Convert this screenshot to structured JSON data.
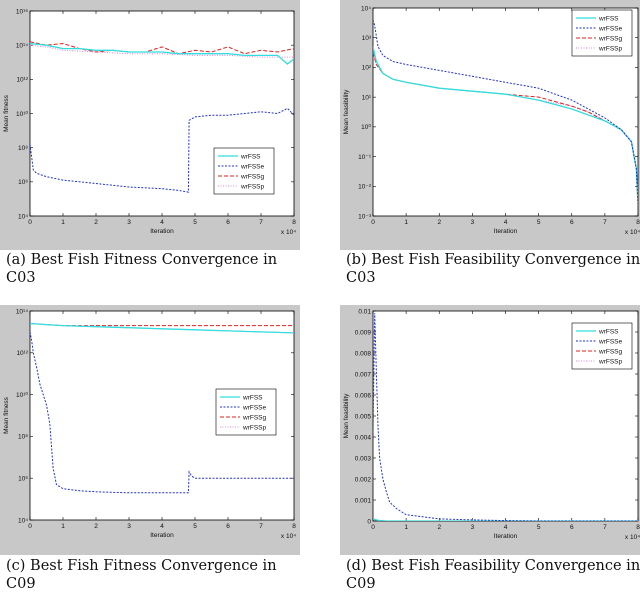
{
  "captions": [
    "(a) Best Fish Fitness Convergence in C03",
    "(b) Best Fish Feasibility Convergence in C03",
    "(c) Best Fish Fitness Convergence in C09",
    "(d) Best Fish Feasibility Convergence in C09"
  ],
  "colors": {
    "wrFSS": "#33dddd",
    "wrFSSe": "#2233cc",
    "wrFSSg": "#dd2222",
    "wrFSSp": "#dd88dd"
  },
  "chart_data": [
    {
      "type": "line",
      "title": "",
      "xlabel": "Iteration",
      "ylabel": "Mean fitness",
      "x_multiplier": "x 10⁴",
      "yscale": "log",
      "xlim": [
        0,
        8
      ],
      "ylim_exp": [
        4,
        16
      ],
      "xticks": [
        "0",
        "1",
        "2",
        "3",
        "4",
        "5",
        "6",
        "7",
        "8"
      ],
      "yticks": [
        "10⁴",
        "10⁶",
        "10⁸",
        "10¹⁰",
        "10¹²",
        "10¹⁴",
        "10¹⁶"
      ],
      "legend_position": "lower-right",
      "series": [
        {
          "name": "wrFSS",
          "x": [
            0,
            0.5,
            1,
            1.5,
            2,
            2.5,
            3,
            3.5,
            4,
            4.5,
            5,
            5.5,
            6,
            6.5,
            7,
            7.5,
            7.8,
            8
          ],
          "log10_y": [
            14.1,
            14.0,
            13.8,
            13.8,
            13.7,
            13.7,
            13.6,
            13.6,
            13.6,
            13.5,
            13.5,
            13.5,
            13.5,
            13.4,
            13.4,
            13.4,
            12.9,
            13.2
          ]
        },
        {
          "name": "wrFSSe",
          "x": [
            0,
            0.1,
            0.2,
            0.5,
            1,
            2,
            3,
            4,
            4.5,
            4.8,
            4.82,
            5,
            5.5,
            6,
            6.5,
            7,
            7.5,
            7.8,
            8
          ],
          "log10_y": [
            8.2,
            6.7,
            6.5,
            6.3,
            6.1,
            5.9,
            5.7,
            5.6,
            5.5,
            5.4,
            9.6,
            9.8,
            9.9,
            9.9,
            10.0,
            10.1,
            10.0,
            10.3,
            9.9
          ]
        },
        {
          "name": "wrFSSg",
          "x": [
            0,
            0.5,
            1,
            1.5,
            2,
            2.5,
            3,
            3.5,
            4,
            4.5,
            5,
            5.5,
            6,
            6.5,
            7,
            7.5,
            8
          ],
          "log10_y": [
            14.2,
            14.0,
            14.1,
            13.8,
            13.6,
            13.7,
            13.6,
            13.6,
            13.9,
            13.5,
            13.7,
            13.6,
            13.9,
            13.5,
            13.7,
            13.6,
            13.8
          ]
        },
        {
          "name": "wrFSSp",
          "x": [
            0,
            0.5,
            1,
            2,
            3,
            4,
            5,
            6,
            7,
            8
          ],
          "log10_y": [
            14.0,
            13.9,
            13.7,
            13.6,
            13.5,
            13.5,
            13.4,
            13.4,
            13.3,
            13.3
          ]
        }
      ]
    },
    {
      "type": "line",
      "title": "",
      "xlabel": "Iteration",
      "ylabel": "Mean feasibility",
      "x_multiplier": "x 10⁴",
      "yscale": "log",
      "xlim": [
        0,
        8
      ],
      "ylim_exp": [
        -3,
        4
      ],
      "xticks": [
        "0",
        "1",
        "2",
        "3",
        "4",
        "5",
        "6",
        "7",
        "8"
      ],
      "yticks": [
        "10⁻³",
        "10⁻²",
        "10⁻¹",
        "10⁰",
        "10¹",
        "10²",
        "10³",
        "10⁴"
      ],
      "legend_position": "top-right",
      "series": [
        {
          "name": "wrFSS",
          "x": [
            0,
            0.1,
            0.3,
            0.6,
            1,
            2,
            3,
            4,
            5,
            6,
            6.5,
            7,
            7.5,
            7.8,
            7.95,
            8
          ],
          "log10_y": [
            2.7,
            2.2,
            1.8,
            1.6,
            1.5,
            1.3,
            1.2,
            1.1,
            0.9,
            0.6,
            0.4,
            0.2,
            -0.1,
            -0.5,
            -1.4,
            -2.6
          ]
        },
        {
          "name": "wrFSSe",
          "x": [
            0,
            0.05,
            0.15,
            0.3,
            0.6,
            1,
            2,
            3,
            4,
            5,
            5.5,
            6,
            6.5,
            7,
            7.5,
            7.8,
            7.95,
            8
          ],
          "log10_y": [
            3.6,
            3.4,
            2.7,
            2.4,
            2.2,
            2.1,
            1.9,
            1.7,
            1.5,
            1.3,
            1.1,
            0.9,
            0.6,
            0.3,
            -0.1,
            -0.5,
            -1.4,
            -2.6
          ]
        },
        {
          "name": "wrFSSg",
          "x": [
            0,
            0.1,
            0.3,
            0.6,
            1,
            2,
            3,
            4,
            5,
            6,
            6.5,
            7,
            7.5,
            7.8,
            7.95,
            8
          ],
          "log10_y": [
            2.5,
            2.1,
            1.8,
            1.6,
            1.5,
            1.3,
            1.2,
            1.1,
            1.0,
            0.7,
            0.5,
            0.2,
            -0.1,
            -0.5,
            -1.4,
            -2.6
          ]
        },
        {
          "name": "wrFSSp",
          "x": [
            0,
            0.1,
            0.3,
            0.6,
            1,
            2,
            3,
            4,
            5,
            6,
            6.5,
            7,
            7.5,
            7.8,
            7.95,
            8
          ],
          "log10_y": [
            2.6,
            2.1,
            1.8,
            1.6,
            1.5,
            1.3,
            1.2,
            1.1,
            0.9,
            0.7,
            0.5,
            0.2,
            -0.1,
            -0.5,
            -1.4,
            -2.6
          ]
        }
      ]
    },
    {
      "type": "line",
      "title": "",
      "xlabel": "Iteration",
      "ylabel": "Mean fitness",
      "x_multiplier": "x 10⁴",
      "yscale": "log",
      "xlim": [
        0,
        8
      ],
      "ylim_exp": [
        4,
        14
      ],
      "xticks": [
        "0",
        "1",
        "2",
        "3",
        "4",
        "5",
        "6",
        "7",
        "8"
      ],
      "yticks": [
        "10⁴",
        "10⁶",
        "10⁸",
        "10¹⁰",
        "10¹²",
        "10¹⁴"
      ],
      "legend_position": "right",
      "series": [
        {
          "name": "wrFSS",
          "x": [
            0,
            0.5,
            1,
            2,
            3,
            4,
            5,
            6,
            7,
            8
          ],
          "log10_y": [
            13.4,
            13.35,
            13.3,
            13.25,
            13.2,
            13.15,
            13.1,
            13.05,
            13.0,
            12.95
          ]
        },
        {
          "name": "wrFSSe",
          "x": [
            0,
            0.05,
            0.1,
            0.2,
            0.3,
            0.4,
            0.5,
            0.6,
            0.7,
            0.8,
            0.9,
            1,
            1.5,
            2,
            3,
            4,
            4.8,
            4.82,
            4.9,
            5,
            6,
            7,
            8
          ],
          "log10_y": [
            13.0,
            12.6,
            12.0,
            11.3,
            10.5,
            10.0,
            9.5,
            8.6,
            6.5,
            5.7,
            5.6,
            5.5,
            5.4,
            5.35,
            5.3,
            5.3,
            5.3,
            6.3,
            6.1,
            6.0,
            6.0,
            6.0,
            6.0
          ]
        },
        {
          "name": "wrFSSg",
          "x": [
            0,
            0.5,
            1,
            2,
            3,
            4,
            5,
            6,
            7,
            8
          ],
          "log10_y": [
            13.4,
            13.35,
            13.3,
            13.3,
            13.3,
            13.3,
            13.3,
            13.3,
            13.3,
            13.3
          ]
        },
        {
          "name": "wrFSSp",
          "x": [
            0,
            0.5,
            1,
            2,
            3,
            4,
            5,
            6,
            7,
            8
          ],
          "log10_y": [
            13.4,
            13.35,
            13.3,
            13.25,
            13.2,
            13.15,
            13.1,
            13.05,
            13.0,
            12.95
          ]
        }
      ]
    },
    {
      "type": "line",
      "title": "",
      "xlabel": "Iteration",
      "ylabel": "Mean feasibility",
      "x_multiplier": "x 10⁴",
      "yscale": "linear",
      "xlim": [
        0,
        8
      ],
      "ylim": [
        0,
        0.01
      ],
      "xticks": [
        "0",
        "1",
        "2",
        "3",
        "4",
        "5",
        "6",
        "7",
        "8"
      ],
      "yticks": [
        "0",
        "0.001",
        "0.002",
        "0.003",
        "0.004",
        "0.005",
        "0.006",
        "0.007",
        "0.008",
        "0.009",
        "0.01"
      ],
      "legend_position": "top-right",
      "series": [
        {
          "name": "wrFSS",
          "x": [
            0,
            0.1,
            0.2,
            0.4,
            1,
            8
          ],
          "y": [
            0.0001,
            5e-05,
            2e-05,
            0,
            0,
            0
          ]
        },
        {
          "name": "wrFSSe",
          "x": [
            0,
            0.05,
            0.1,
            0.15,
            0.2,
            0.3,
            0.4,
            0.5,
            0.7,
            1,
            1.5,
            2,
            3,
            4,
            5,
            6,
            8
          ],
          "y": [
            0.0042,
            0.0099,
            0.0072,
            0.0045,
            0.003,
            0.002,
            0.0014,
            0.0009,
            0.0006,
            0.0003,
            0.0002,
            0.0001,
            5e-05,
            2e-05,
            0,
            0,
            0
          ]
        },
        {
          "name": "wrFSSg",
          "x": [
            0,
            0.1,
            0.2,
            0.4,
            1,
            8
          ],
          "y": [
            0.0001,
            5e-05,
            2e-05,
            0,
            0,
            0
          ]
        },
        {
          "name": "wrFSSp",
          "x": [
            0,
            0.1,
            0.2,
            0.4,
            1,
            8
          ],
          "y": [
            0.0001,
            5e-05,
            2e-05,
            0,
            0,
            0
          ]
        }
      ]
    }
  ]
}
